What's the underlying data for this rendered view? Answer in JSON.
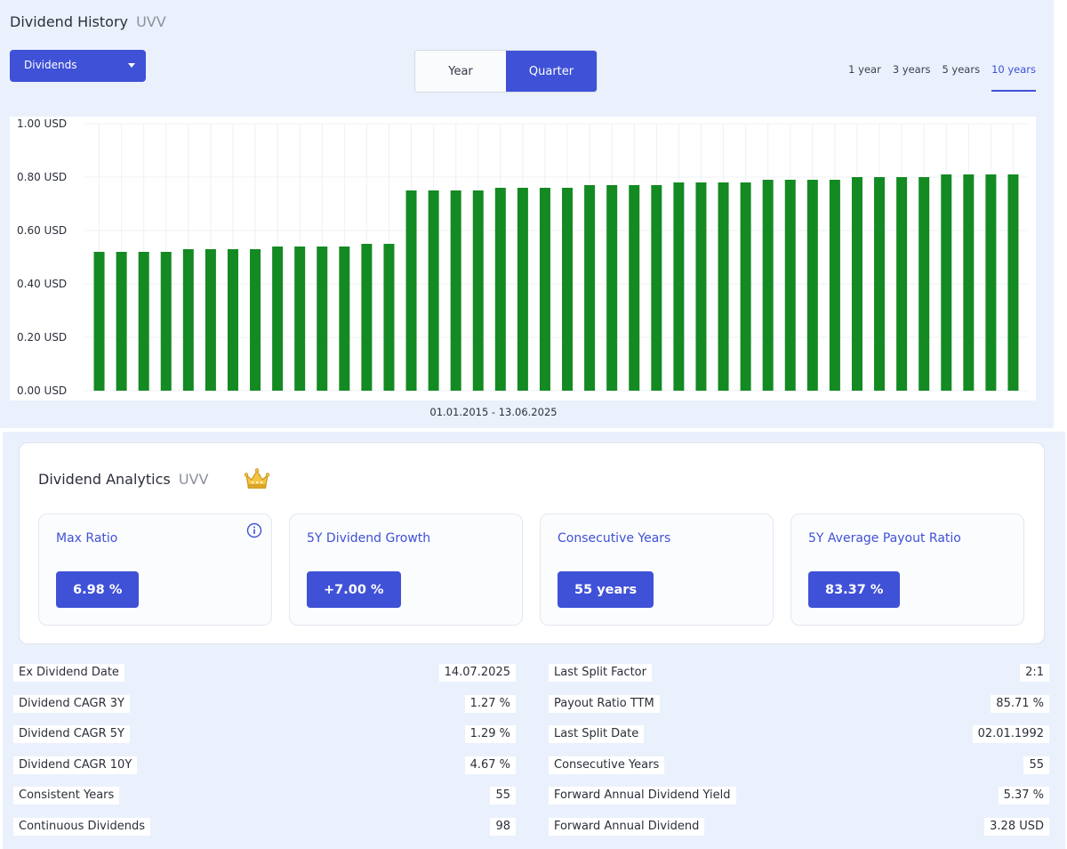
{
  "history": {
    "title": "Dividend History",
    "ticker": "UVV",
    "dropdown_label": "Dividends",
    "period_toggle": [
      "Year",
      "Quarter"
    ],
    "period_selected": "Quarter",
    "ranges": [
      "1 year",
      "3 years",
      "5 years",
      "10 years"
    ],
    "range_selected": "10 years",
    "date_range": "01.01.2015 - 13.06.2025"
  },
  "chart_data": {
    "type": "bar",
    "title": "",
    "xlabel": "01.01.2015 - 13.06.2025",
    "ylabel": "",
    "ylim": [
      0,
      1.0
    ],
    "yticks": [
      "0.00 USD",
      "0.20 USD",
      "0.40 USD",
      "0.60 USD",
      "0.80 USD",
      "1.00 USD"
    ],
    "grid": true,
    "bar_color": "#148a22",
    "values": [
      0.52,
      0.52,
      0.52,
      0.52,
      0.53,
      0.53,
      0.53,
      0.53,
      0.54,
      0.54,
      0.54,
      0.54,
      0.55,
      0.55,
      0.75,
      0.75,
      0.75,
      0.75,
      0.76,
      0.76,
      0.76,
      0.76,
      0.77,
      0.77,
      0.77,
      0.77,
      0.78,
      0.78,
      0.78,
      0.78,
      0.79,
      0.79,
      0.79,
      0.79,
      0.8,
      0.8,
      0.8,
      0.8,
      0.81,
      0.81,
      0.81,
      0.81
    ]
  },
  "analytics": {
    "title": "Dividend Analytics",
    "ticker": "UVV",
    "cards": [
      {
        "label": "Max Ratio",
        "value": "6.98 %"
      },
      {
        "label": "5Y Dividend Growth",
        "value": "+7.00 %"
      },
      {
        "label": "Consecutive Years",
        "value": "55 years"
      },
      {
        "label": "5Y Average Payout Ratio",
        "value": "83.37 %"
      }
    ]
  },
  "stats_left": [
    {
      "label": "Ex Dividend Date",
      "value": "14.07.2025"
    },
    {
      "label": "Dividend CAGR 3Y",
      "value": "1.27 %"
    },
    {
      "label": "Dividend CAGR 5Y",
      "value": "1.29 %"
    },
    {
      "label": "Dividend CAGR 10Y",
      "value": "4.67 %"
    },
    {
      "label": "Consistent Years",
      "value": "55"
    },
    {
      "label": "Continuous Dividends",
      "value": "98"
    }
  ],
  "stats_right": [
    {
      "label": "Last Split Factor",
      "value": "2:1"
    },
    {
      "label": "Payout Ratio TTM",
      "value": "85.71 %"
    },
    {
      "label": "Last Split Date",
      "value": "02.01.1992"
    },
    {
      "label": "Consecutive Years",
      "value": "55"
    },
    {
      "label": "Forward Annual Dividend Yield",
      "value": "5.37 %"
    },
    {
      "label": "Forward Annual Dividend",
      "value": "3.28 USD"
    }
  ],
  "colors": {
    "accent": "#3f51d6",
    "panel_bg": "#eaf1fd",
    "bar": "#148a22"
  }
}
